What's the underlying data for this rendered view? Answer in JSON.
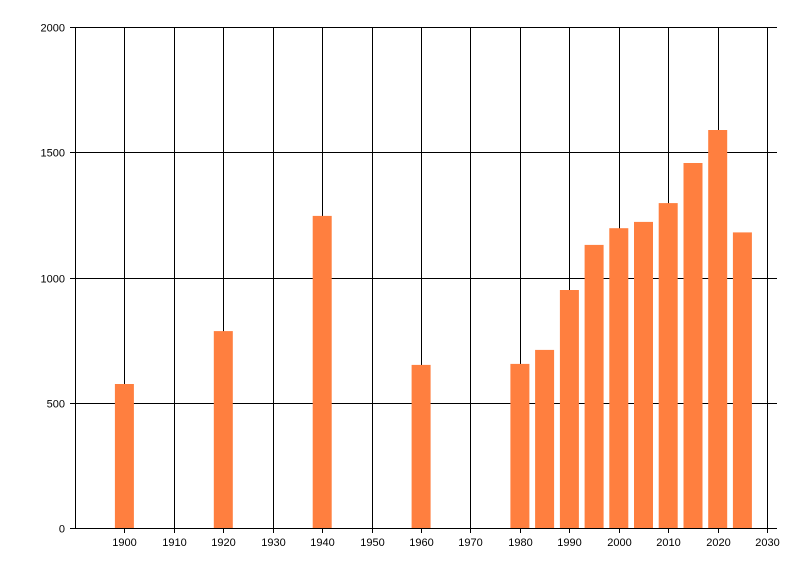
{
  "chart_data": {
    "type": "bar",
    "title": "",
    "xlabel": "",
    "ylabel": "",
    "x": [
      1900,
      1920,
      1940,
      1960,
      1980,
      1985,
      1990,
      1995,
      2000,
      2005,
      2010,
      2015,
      2020,
      2025
    ],
    "values": [
      575,
      786,
      1246,
      651,
      655,
      711,
      950,
      1130,
      1197,
      1222,
      1297,
      1457,
      1589,
      1180
    ],
    "xlim": [
      1890,
      2032
    ],
    "ylim": [
      0,
      2000
    ],
    "x_ticks": [
      1900,
      1910,
      1920,
      1930,
      1940,
      1950,
      1960,
      1970,
      1980,
      1990,
      2000,
      2010,
      2020,
      2030
    ],
    "y_ticks": [
      0,
      500,
      1000,
      1500,
      2000
    ],
    "grid": true,
    "legend": "none",
    "bar_color": "#ff7f3f",
    "grid_color": "#000000"
  }
}
